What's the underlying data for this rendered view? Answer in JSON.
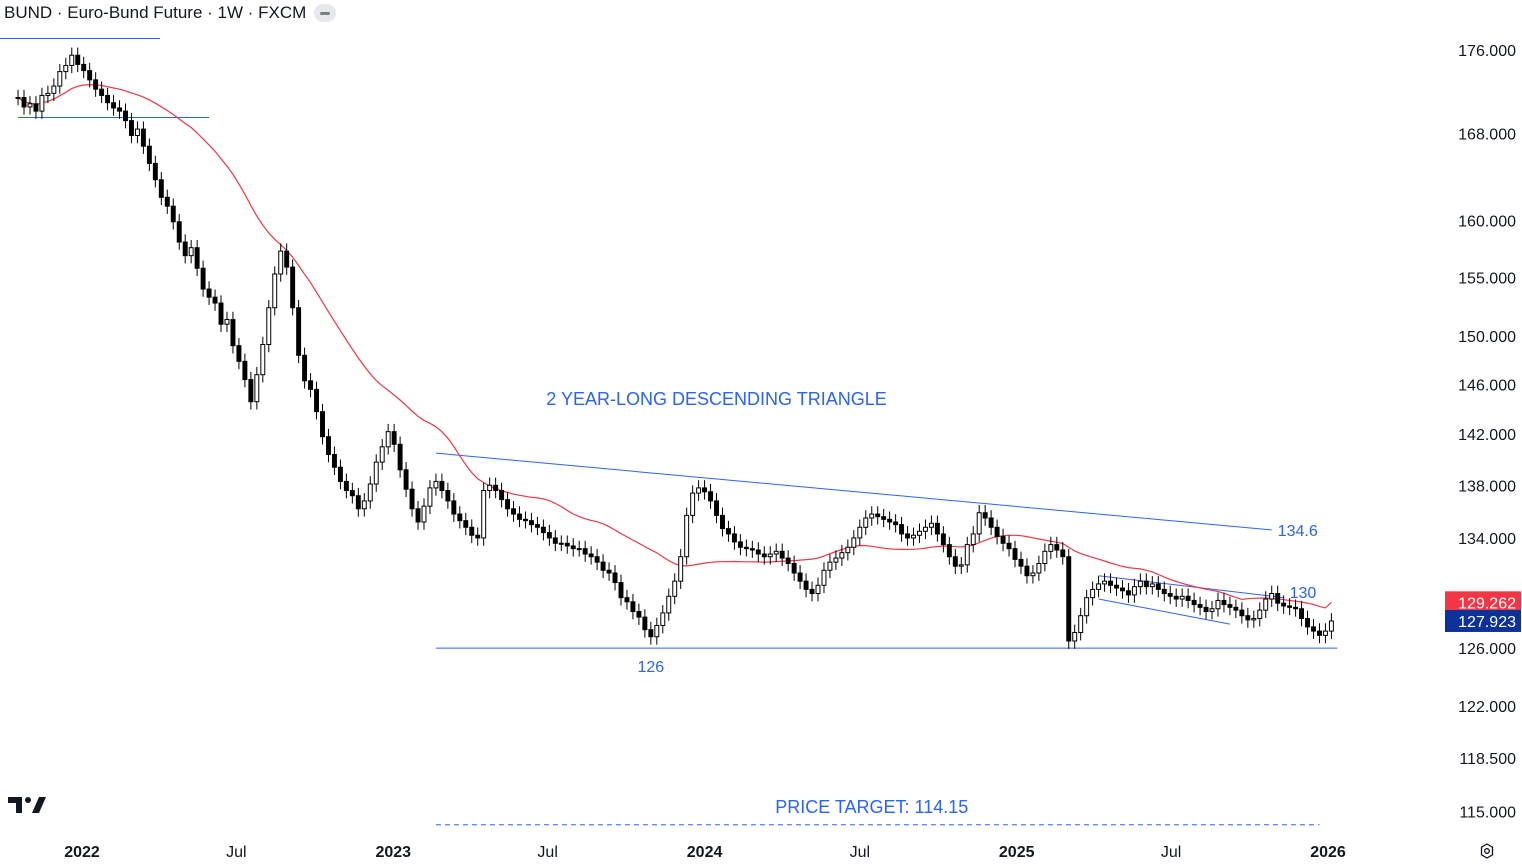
{
  "header": {
    "title": "BUND · Euro-Bund Future · 1W · FXCM"
  },
  "icons": {
    "header_toggle": "minus-pill-icon",
    "logo": "tradingview-logo",
    "settings": "gear-icon"
  },
  "colors": {
    "text": "#131722",
    "annotation": "#2962ff",
    "trendline": "#2962ff",
    "ma": "#f23645",
    "candle_up_fill": "#ffffff",
    "candle_down_fill": "#000000",
    "candle_border": "#000000",
    "ma_badge": "#f23645",
    "price_badge": "#0c3299"
  },
  "chart_data": {
    "type": "candlestick",
    "title": "BUND · Euro-Bund Future · 1W · FXCM",
    "scale": "log",
    "ylim": [
      113.5,
      181
    ],
    "y_ticks": [
      115.0,
      118.5,
      122.0,
      126.0,
      134.0,
      138.0,
      142.0,
      146.0,
      150.0,
      155.0,
      160.0,
      168.0,
      176.0
    ],
    "y_tick_labels": [
      "115.000",
      "118.500",
      "122.000",
      "126.000",
      "134.000",
      "138.000",
      "142.000",
      "146.000",
      "150.000",
      "155.000",
      "160.000",
      "168.000",
      "176.000"
    ],
    "x_ticks": [
      {
        "label": "2022",
        "date": "2022-01-01",
        "bold": true
      },
      {
        "label": "Jul",
        "date": "2022-07-01",
        "bold": false
      },
      {
        "label": "2023",
        "date": "2023-01-01",
        "bold": true
      },
      {
        "label": "Jul",
        "date": "2023-07-01",
        "bold": false
      },
      {
        "label": "2024",
        "date": "2024-01-01",
        "bold": true
      },
      {
        "label": "Jul",
        "date": "2024-07-01",
        "bold": false
      },
      {
        "label": "2025",
        "date": "2025-01-01",
        "bold": true
      },
      {
        "label": "Jul",
        "date": "2025-07-01",
        "bold": false
      },
      {
        "label": "2026",
        "date": "2026-01-01",
        "bold": true
      }
    ],
    "series": {
      "type": "weekly-candles",
      "start": "2021-10-18",
      "closes": [
        171.4,
        170.5,
        170.8,
        170.1,
        171.6,
        171.8,
        172.5,
        173.9,
        174.5,
        175.5,
        174.6,
        174.0,
        173.1,
        172.2,
        171.6,
        170.9,
        170.4,
        170.1,
        169.2,
        167.8,
        168.4,
        166.8,
        165.2,
        163.7,
        162.1,
        161.3,
        159.9,
        158.1,
        156.9,
        157.6,
        155.8,
        154.0,
        153.3,
        152.8,
        151.0,
        151.4,
        149.2,
        147.9,
        146.4,
        144.6,
        146.8,
        149.3,
        152.4,
        155.3,
        157.3,
        155.9,
        152.4,
        148.4,
        146.3,
        145.6,
        143.8,
        141.8,
        140.4,
        139.4,
        138.3,
        137.6,
        137.2,
        136.2,
        136.8,
        138.1,
        139.8,
        141.0,
        142.2,
        141.2,
        139.2,
        137.7,
        136.2,
        135.2,
        136.4,
        137.8,
        138.3,
        137.6,
        136.8,
        135.8,
        135.3,
        134.8,
        134.2,
        134.0,
        137.6,
        138.0,
        137.6,
        136.9,
        136.2,
        135.8,
        135.4,
        135.3,
        135.0,
        134.8,
        134.4,
        134.0,
        133.6,
        133.6,
        133.4,
        133.2,
        133.2,
        132.8,
        132.6,
        132.2,
        131.6,
        131.4,
        130.7,
        129.6,
        129.3,
        128.6,
        128.2,
        127.3,
        126.8,
        127.6,
        128.5,
        129.7,
        130.8,
        132.6,
        135.7,
        137.4,
        137.8,
        137.5,
        136.8,
        135.7,
        134.7,
        134.3,
        133.7,
        133.3,
        133.2,
        133.1,
        132.8,
        132.6,
        132.8,
        133.0,
        132.5,
        132.1,
        131.4,
        130.8,
        130.2,
        129.9,
        130.5,
        131.6,
        132.2,
        132.5,
        132.9,
        133.3,
        134.0,
        134.8,
        135.5,
        135.8,
        135.6,
        135.4,
        135.2,
        135.0,
        134.3,
        134.0,
        134.2,
        134.5,
        134.8,
        135.1,
        134.3,
        133.5,
        132.6,
        131.9,
        132.0,
        133.5,
        134.3,
        135.9,
        135.5,
        134.8,
        134.1,
        133.6,
        133.2,
        132.4,
        131.9,
        131.2,
        131.4,
        132.1,
        133.0,
        133.5,
        133.1,
        132.6,
        126.5,
        127.1,
        128.3,
        129.6,
        130.2,
        130.6,
        130.8,
        130.5,
        130.3,
        130.1,
        129.8,
        130.4,
        130.8,
        130.4,
        130.6,
        130.2,
        129.9,
        129.7,
        129.5,
        129.7,
        129.4,
        129.1,
        128.9,
        128.6,
        128.8,
        129.4,
        129.1,
        128.9,
        128.7,
        128.3,
        128.0,
        128.1,
        128.7,
        129.5,
        129.9,
        129.2,
        129.0,
        128.9,
        128.8,
        128.1,
        127.5,
        127.2,
        126.9,
        127.2,
        127.923
      ],
      "ma_last": 129.262
    },
    "annotations": {
      "title_label": "2 YEAR-LONG DESCENDING TRIANGLE",
      "support_label": "126",
      "resistance_label": "134.6",
      "channel_label": "130",
      "target_label": "PRICE TARGET: 114.15"
    },
    "levels": {
      "support": 126,
      "target": 114.15,
      "prior_support": 169.5
    },
    "badges": {
      "ma_value": "129.262",
      "last_price": "127.923"
    },
    "grid": false,
    "legend": "none"
  }
}
